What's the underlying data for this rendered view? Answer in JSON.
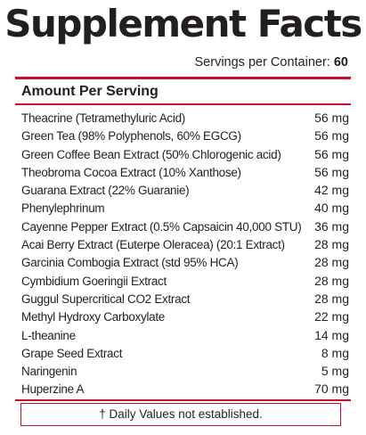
{
  "title": "Supplement Facts",
  "servings": {
    "label": "Servings per Container:",
    "value": "60"
  },
  "amount_header": "Amount Per Serving",
  "ingredients": [
    {
      "name": "Theacrine (Tetramethyluric Acid)",
      "amount": "56 mg"
    },
    {
      "name": "Green Tea (98% Polyphenols, 60% EGCG)",
      "amount": "56 mg"
    },
    {
      "name": "Green Coffee Bean Extract (50% Chlorogenic acid)",
      "amount": "56 mg"
    },
    {
      "name": "Theobroma Cocoa Extract (10% Xanthose)",
      "amount": "56 mg"
    },
    {
      "name": "Guarana Extract (22% Guaranie)",
      "amount": "42 mg"
    },
    {
      "name": "Phenylephrinum",
      "amount": "40 mg"
    },
    {
      "name": "Cayenne Pepper Extract (0.5% Capsaicin 40,000 STU)",
      "amount": "36 mg"
    },
    {
      "name": "Acai Berry Extract (Euterpe Oleracea) (20:1 Extract)",
      "amount": "28 mg"
    },
    {
      "name": "Garcinia Combogia Extract (std 95% HCA)",
      "amount": "28 mg"
    },
    {
      "name": "Cymbidium Goeringii Extract",
      "amount": "28 mg"
    },
    {
      "name": "Guggul Supercritical CO2 Extract",
      "amount": "28 mg"
    },
    {
      "name": "Methyl Hydroxy Carboxylate",
      "amount": "22 mg"
    },
    {
      "name": "L-theanine",
      "amount": "14 mg"
    },
    {
      "name": "Grape Seed Extract",
      "amount": "8 mg"
    },
    {
      "name": "Naringenin",
      "amount": "5 mg"
    },
    {
      "name": "Huperzine A",
      "amount": "70 mg"
    }
  ],
  "footnote": "† Daily Values not established.",
  "colors": {
    "accent": "#c8102e",
    "text": "#231f20"
  }
}
